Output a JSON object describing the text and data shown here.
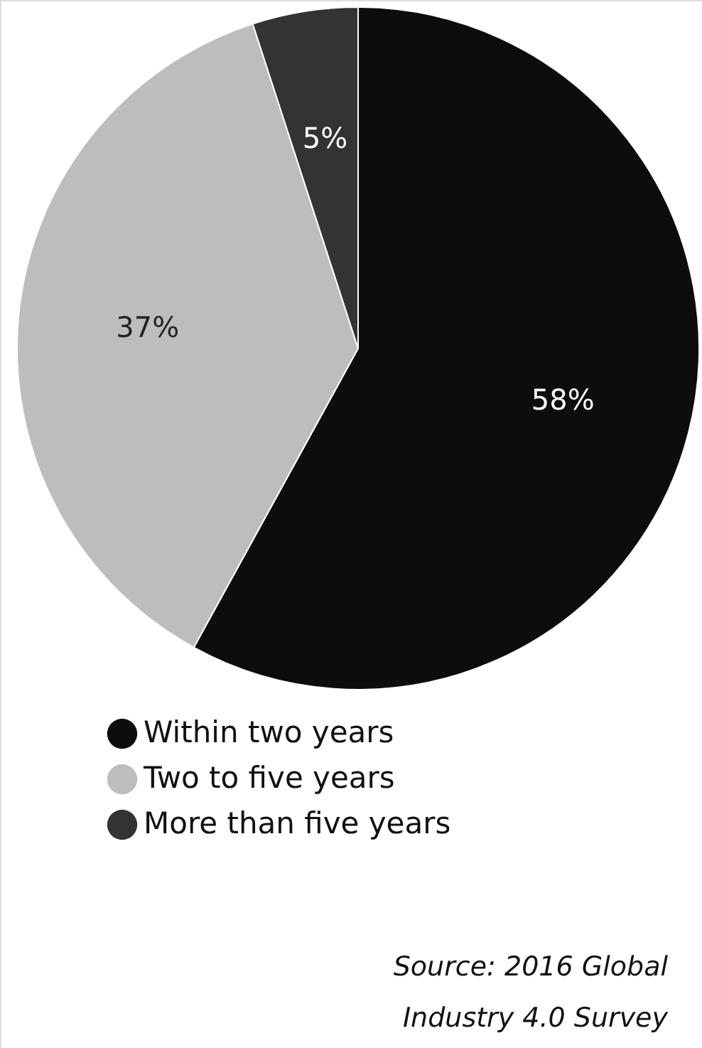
{
  "chart_data": {
    "type": "pie",
    "categories": [
      "Within two years",
      "Two to five years",
      "More than five years"
    ],
    "values": [
      58,
      37,
      5
    ],
    "colors": [
      "#0d0d0d",
      "#bdbdbd",
      "#333333"
    ],
    "value_labels": [
      "58%",
      "37%",
      "5%"
    ],
    "legend": "bottom",
    "annotations": [
      "Source: 2016 Global Industry 4.0 Survey"
    ]
  }
}
